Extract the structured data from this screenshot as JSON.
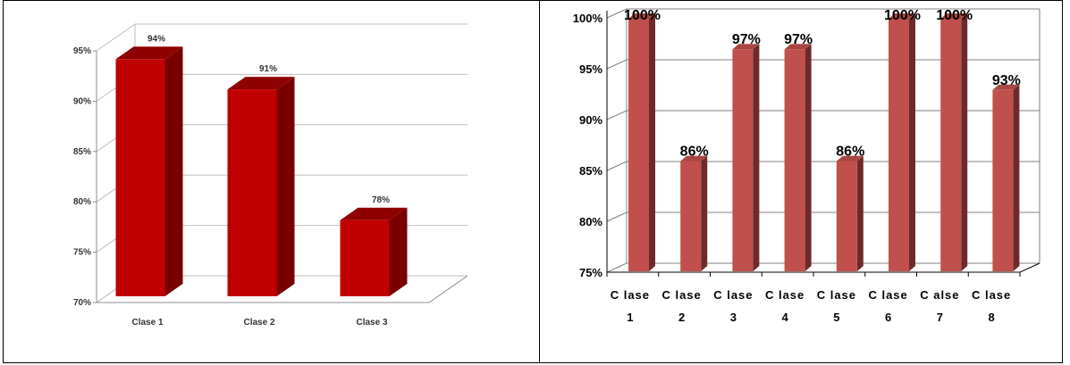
{
  "chart_data": [
    {
      "type": "bar",
      "style": "3d-cylinder-box",
      "categories": [
        "Clase 1",
        "Clase 2",
        "Clase 3"
      ],
      "values": [
        94,
        91,
        78
      ],
      "value_labels": [
        "94%",
        "91%",
        "78%"
      ],
      "title": "",
      "xlabel": "",
      "ylabel": "",
      "ylim": [
        70,
        95
      ],
      "yticks": [
        "70%",
        "75%",
        "80%",
        "85%",
        "90%",
        "95%"
      ],
      "grid": true,
      "legend": "none",
      "colors": {
        "front": "#c00000",
        "side": "#7a0000",
        "top": "#8f0000"
      }
    },
    {
      "type": "bar",
      "style": "3d-box",
      "categories": [
        [
          "C lase",
          "1"
        ],
        [
          "C lase",
          "2"
        ],
        [
          "C lase",
          "3"
        ],
        [
          "C lase",
          "4"
        ],
        [
          "C lase",
          "5"
        ],
        [
          "C lase",
          "6"
        ],
        [
          "C alse",
          "7"
        ],
        [
          "C lase",
          "8"
        ]
      ],
      "values": [
        100,
        86,
        97,
        97,
        86,
        100,
        100,
        93
      ],
      "value_labels": [
        "100%",
        "86%",
        "97%",
        "97%",
        "86%",
        "100%",
        "100%",
        "93%"
      ],
      "title": "",
      "xlabel": "",
      "ylabel": "",
      "ylim": [
        75,
        100
      ],
      "yticks": [
        "75%",
        "80%",
        "85%",
        "90%",
        "95%",
        "100%"
      ],
      "grid": true,
      "legend": "none",
      "colors": {
        "front": "#c0504d",
        "side": "#6e2a28",
        "top": "#a84643"
      }
    }
  ]
}
